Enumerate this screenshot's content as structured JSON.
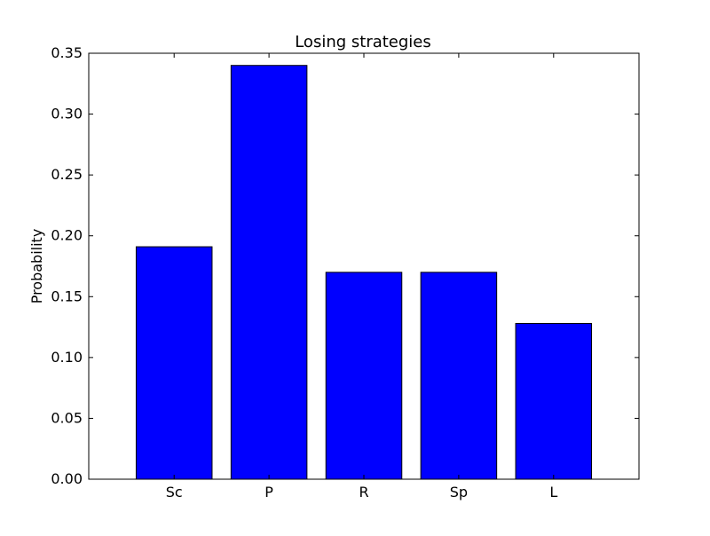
{
  "chart_data": {
    "type": "bar",
    "title": "Losing strategies",
    "xlabel": "",
    "ylabel": "Probability",
    "categories": [
      "Sc",
      "P",
      "R",
      "Sp",
      "L"
    ],
    "values": [
      0.191,
      0.34,
      0.17,
      0.17,
      0.128
    ],
    "ylim": [
      0,
      0.35
    ],
    "yticks": [
      "0.00",
      "0.05",
      "0.10",
      "0.15",
      "0.20",
      "0.25",
      "0.30",
      "0.35"
    ],
    "bar_color": "#0000ff",
    "edge_color": "#000000",
    "grid": false
  }
}
